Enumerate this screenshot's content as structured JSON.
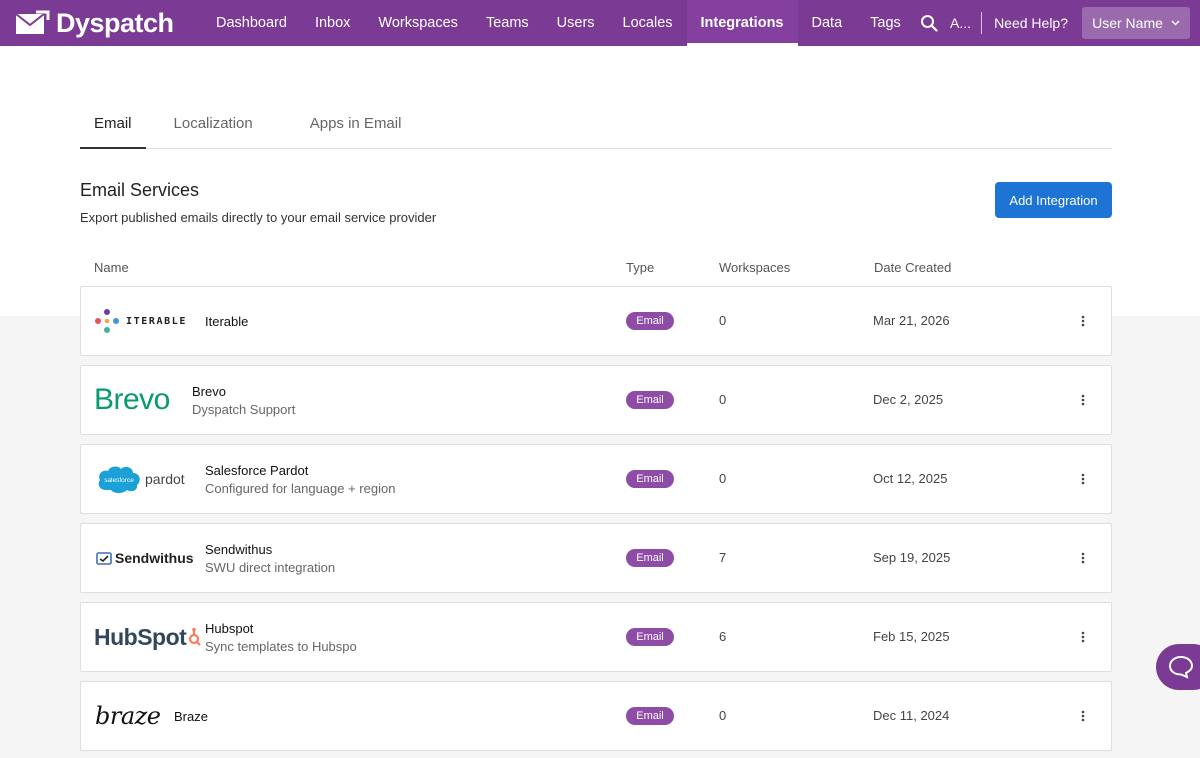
{
  "nav": {
    "brand": "Dyspatch",
    "items": [
      {
        "label": "Dashboard"
      },
      {
        "label": "Inbox"
      },
      {
        "label": "Workspaces"
      },
      {
        "label": "Teams"
      },
      {
        "label": "Users"
      },
      {
        "label": "Locales"
      },
      {
        "label": "Integrations"
      },
      {
        "label": "Data"
      },
      {
        "label": "Tags"
      }
    ],
    "active": "Integrations",
    "account_label": "A...",
    "help_label": "Need Help?",
    "user_label": "User Name",
    "icons": [
      "envelope-logo-icon",
      "search-icon",
      "chevron-down-icon"
    ]
  },
  "tabs": [
    {
      "label": "Email"
    },
    {
      "label": "Localization"
    },
    {
      "label": "Apps in Email"
    }
  ],
  "section": {
    "title": "Email Services",
    "subtitle": "Export published emails directly to your email service provider",
    "add_button": "Add Integration"
  },
  "table": {
    "headers": {
      "name": "Name",
      "type": "Type",
      "workspaces": "Workspaces",
      "date": "Date Created"
    },
    "rows": [
      {
        "logo_text": "ITERABLE",
        "name": "Iterable",
        "description": "",
        "type": "Email",
        "workspaces": "0",
        "date": "Mar 21, 2026"
      },
      {
        "logo_text": "Brevo",
        "name": "Brevo",
        "description": "Dyspatch Support",
        "type": "Email",
        "workspaces": "0",
        "date": "Dec 2, 2025"
      },
      {
        "logo_text": "pardot",
        "logo_cloud_text": "salesforce",
        "name": "Salesforce Pardot",
        "description": "Configured for language + region",
        "type": "Email",
        "workspaces": "0",
        "date": "Oct 12, 2025"
      },
      {
        "logo_text": "Sendwithus",
        "name": "Sendwithus",
        "description": "SWU direct integration",
        "type": "Email",
        "workspaces": "7",
        "date": "Sep 19, 2025"
      },
      {
        "logo_text": "HubSpot",
        "name": "Hubspot",
        "description": "Sync templates to Hubspo",
        "type": "Email",
        "workspaces": "6",
        "date": "Feb 15, 2025"
      },
      {
        "logo_text": "braze",
        "name": "Braze",
        "description": "",
        "type": "Email",
        "workspaces": "0",
        "date": "Dec 11, 2024"
      }
    ]
  },
  "colors": {
    "nav_bg": "#7b3a93",
    "badge": "#8e4ca7",
    "primary_button": "#1d74d4",
    "brevo_green": "#0b996e",
    "hubspot_orange": "#ff7a59"
  }
}
